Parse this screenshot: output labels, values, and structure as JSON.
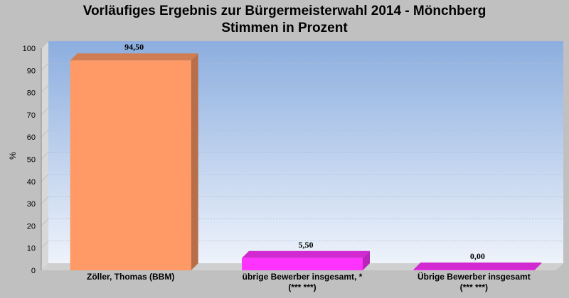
{
  "title": "Vorläufiges Ergebnis zur Bürgermeisterwahl 2014 - Mönchberg",
  "subtitle": "Stimmen in Prozent",
  "chart_data": {
    "type": "bar",
    "title": "Vorläufiges Ergebnis zur Bürgermeisterwahl 2014 - Mönchberg",
    "subtitle": "Stimmen in Prozent",
    "xlabel": "",
    "ylabel": "%",
    "ylim": [
      0,
      100
    ],
    "yticks": [
      "0",
      "10",
      "20",
      "30",
      "40",
      "50",
      "60",
      "70",
      "80",
      "90",
      "100"
    ],
    "grid": true,
    "categories": [
      [
        "Zöller, Thomas (BBM)"
      ],
      [
        "übrige Bewerber insgesamt, *",
        "(*** ***)"
      ],
      [
        "Übrige Bewerber insgesamt",
        "(***  ***)"
      ]
    ],
    "values": [
      94.5,
      5.5,
      0.0
    ],
    "value_labels": [
      "94,50",
      "5,50",
      "0,00"
    ],
    "colors": [
      "#ff9966",
      "#ff33ff",
      "#ff33ff"
    ],
    "background": {
      "top": "#8caedf",
      "bottom": "#eef3fb",
      "page": "#c0c0c0"
    }
  }
}
